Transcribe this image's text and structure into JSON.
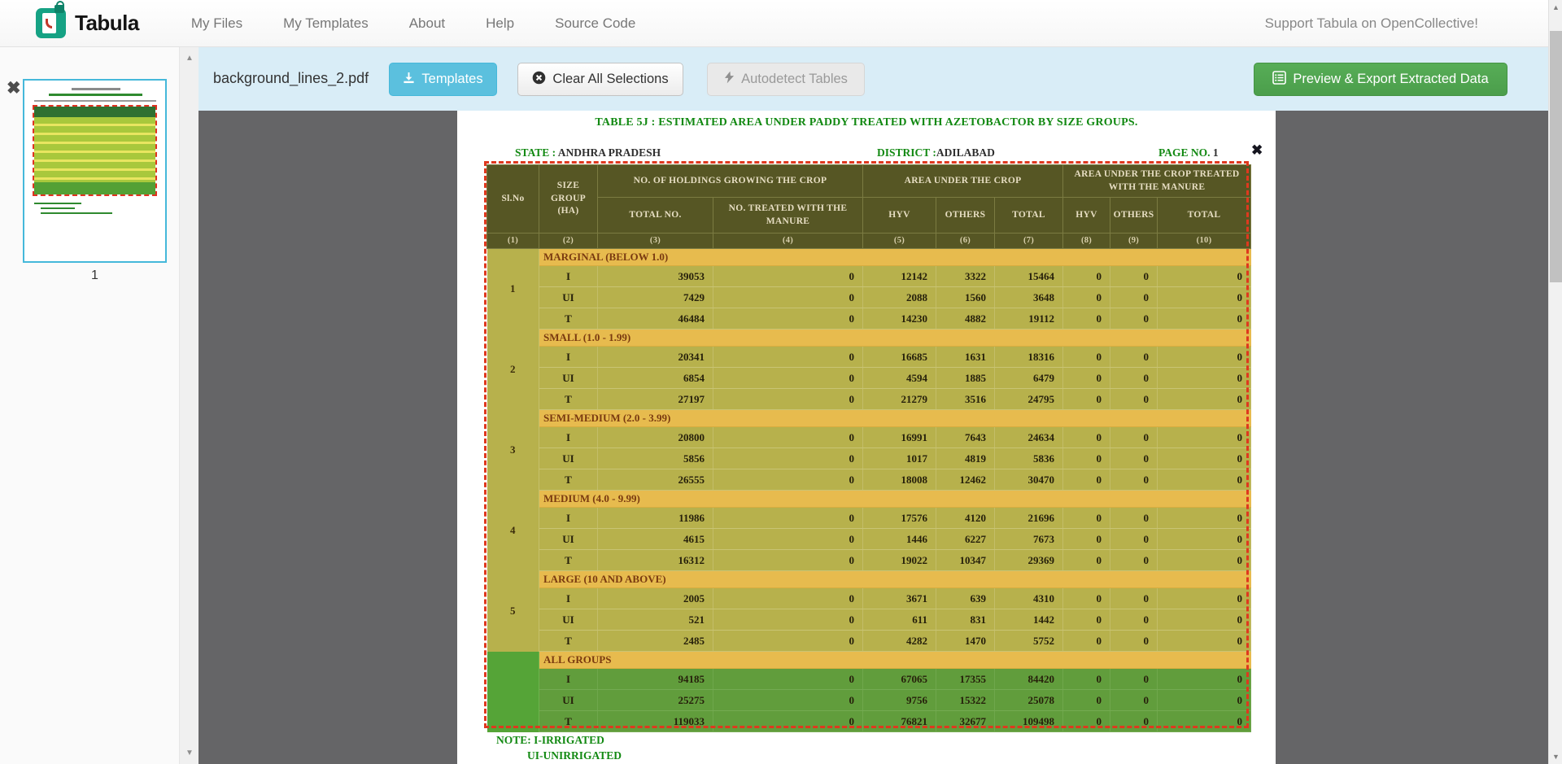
{
  "navbar": {
    "brand": "Tabula",
    "items": [
      "My Files",
      "My Templates",
      "About",
      "Help",
      "Source Code"
    ],
    "support_link": "Support Tabula on OpenCollective!"
  },
  "toolbar": {
    "filename": "background_lines_2.pdf",
    "templates_label": "Templates",
    "clear_label": "Clear All Selections",
    "autodetect_label": "Autodetect Tables",
    "export_label": "Preview & Export Extracted Data"
  },
  "sidebar": {
    "page_number": "1",
    "remove_icon": "✖"
  },
  "document": {
    "title": "TABLE 5J : ESTIMATED AREA UNDER PADDY  TREATED WITH AZETOBACTOR BY SIZE GROUPS.",
    "state_label": "STATE :",
    "state_value": " ANDHRA PRADESH",
    "district_label": "DISTRICT :",
    "district_value": "ADILABAD",
    "page_label": "PAGE NO.",
    "page_value": " 1",
    "selection_close": "✖",
    "note_line1": "NOTE: I-IRRIGATED",
    "note_line2": "UI-UNIRRIGATED"
  },
  "table": {
    "header": {
      "slno": "Sl.No",
      "size_group": "SIZE GROUP (HA)",
      "group1": "NO. OF HOLDINGS GROWING THE CROP",
      "group2": "AREA UNDER THE CROP",
      "group3": "AREA UNDER THE CROP TREATED WITH THE MANURE",
      "sub": [
        "TOTAL NO.",
        "NO. TREATED WITH THE MANURE",
        "HYV",
        "OTHERS",
        "TOTAL",
        "HYV",
        "OTHERS",
        "TOTAL"
      ],
      "col_numbers": [
        "(1)",
        "(2)",
        "(3)",
        "(4)",
        "(5)",
        "(6)",
        "(7)",
        "(8)",
        "(9)",
        "(10)"
      ]
    },
    "groups": [
      {
        "slno": "1",
        "label": "MARGINAL (BELOW 1.0)",
        "all_groups": false,
        "rows": [
          [
            "I",
            "39053",
            "0",
            "12142",
            "3322",
            "15464",
            "0",
            "0",
            "0"
          ],
          [
            "UI",
            "7429",
            "0",
            "2088",
            "1560",
            "3648",
            "0",
            "0",
            "0"
          ],
          [
            "T",
            "46484",
            "0",
            "14230",
            "4882",
            "19112",
            "0",
            "0",
            "0"
          ]
        ]
      },
      {
        "slno": "2",
        "label": "SMALL (1.0 - 1.99)",
        "all_groups": false,
        "rows": [
          [
            "I",
            "20341",
            "0",
            "16685",
            "1631",
            "18316",
            "0",
            "0",
            "0"
          ],
          [
            "UI",
            "6854",
            "0",
            "4594",
            "1885",
            "6479",
            "0",
            "0",
            "0"
          ],
          [
            "T",
            "27197",
            "0",
            "21279",
            "3516",
            "24795",
            "0",
            "0",
            "0"
          ]
        ]
      },
      {
        "slno": "3",
        "label": "SEMI-MEDIUM (2.0 - 3.99)",
        "all_groups": false,
        "rows": [
          [
            "I",
            "20800",
            "0",
            "16991",
            "7643",
            "24634",
            "0",
            "0",
            "0"
          ],
          [
            "UI",
            "5856",
            "0",
            "1017",
            "4819",
            "5836",
            "0",
            "0",
            "0"
          ],
          [
            "T",
            "26555",
            "0",
            "18008",
            "12462",
            "30470",
            "0",
            "0",
            "0"
          ]
        ]
      },
      {
        "slno": "4",
        "label": "MEDIUM (4.0 - 9.99)",
        "all_groups": false,
        "rows": [
          [
            "I",
            "11986",
            "0",
            "17576",
            "4120",
            "21696",
            "0",
            "0",
            "0"
          ],
          [
            "UI",
            "4615",
            "0",
            "1446",
            "6227",
            "7673",
            "0",
            "0",
            "0"
          ],
          [
            "T",
            "16312",
            "0",
            "19022",
            "10347",
            "29369",
            "0",
            "0",
            "0"
          ]
        ]
      },
      {
        "slno": "5",
        "label": "LARGE (10 AND ABOVE)",
        "all_groups": false,
        "rows": [
          [
            "I",
            "2005",
            "0",
            "3671",
            "639",
            "4310",
            "0",
            "0",
            "0"
          ],
          [
            "UI",
            "521",
            "0",
            "611",
            "831",
            "1442",
            "0",
            "0",
            "0"
          ],
          [
            "T",
            "2485",
            "0",
            "4282",
            "1470",
            "5752",
            "0",
            "0",
            "0"
          ]
        ]
      },
      {
        "slno": "",
        "label": "ALL GROUPS",
        "all_groups": true,
        "rows": [
          [
            "I",
            "94185",
            "0",
            "67065",
            "17355",
            "84420",
            "0",
            "0",
            "0"
          ],
          [
            "UI",
            "25275",
            "0",
            "9756",
            "15322",
            "25078",
            "0",
            "0",
            "0"
          ],
          [
            "T",
            "119033",
            "0",
            "76821",
            "32677",
            "109498",
            "0",
            "0",
            "0"
          ]
        ]
      }
    ]
  },
  "colors": {
    "toolbar_bg": "#d9edf7",
    "templates_btn": "#5bc0de",
    "export_btn": "#4b9e4b",
    "brand_green": "#16a284",
    "table_header": "#565624",
    "band_orange": "#e7bb4e",
    "row_olive": "#b7b14c",
    "all_groups_green": "#619d3c",
    "selection_red": "#df381e",
    "doc_green": "#128912"
  }
}
